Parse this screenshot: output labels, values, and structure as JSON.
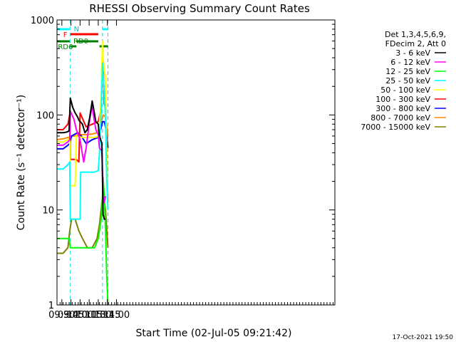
{
  "chart_data": {
    "type": "line",
    "title": "RHESSI Observing Summary Count Rates",
    "xlabel": "Start Time (02-Jul-05 09:21:42)",
    "ylabel": "Count Rate (s⁻¹ detector⁻¹)",
    "yscale": "log",
    "ylim": [
      1,
      1000
    ],
    "xlim_min": [
      562,
      1020
    ],
    "x_ticks": [
      {
        "label": "09:30",
        "min": 570
      },
      {
        "label": "09:45",
        "min": 585
      },
      {
        "label": "10:00",
        "min": 600
      },
      {
        "label": "10:15",
        "min": 615
      },
      {
        "label": "10:30",
        "min": 630
      },
      {
        "label": "10:45",
        "min": 645
      },
      {
        "label": "11:00",
        "min": 660
      }
    ],
    "y_ticks": [
      {
        "label": "1",
        "value": 1
      },
      {
        "label": "10",
        "value": 10
      },
      {
        "label": "100",
        "value": 100
      },
      {
        "label": "1000",
        "value": 1000
      }
    ],
    "legend_header": [
      "Det 1,3,4,5,6,9,",
      "FDecim 2, Att 0"
    ],
    "legend_placement": "right",
    "footer_date": "17-Oct-2021 19:50",
    "flags": {
      "N_label": "N",
      "F_label": "F",
      "RD0_label": "RD0",
      "RD6_label": "RD6"
    },
    "series": [
      {
        "name": "3 - 6 keV",
        "color": "#000000",
        "points": [
          [
            562,
            65
          ],
          [
            572,
            65
          ],
          [
            578,
            66
          ],
          [
            582,
            68
          ],
          [
            584,
            150
          ],
          [
            588,
            120
          ],
          [
            592,
            105
          ],
          [
            596,
            95
          ],
          [
            598,
            88
          ],
          [
            604,
            80
          ],
          [
            608,
            65
          ],
          [
            612,
            70
          ],
          [
            616,
            95
          ],
          [
            620,
            140
          ],
          [
            622,
            120
          ],
          [
            626,
            85
          ],
          [
            630,
            80
          ],
          [
            632,
            60
          ],
          [
            636,
            50
          ],
          [
            637,
            20
          ],
          [
            638,
            9
          ],
          [
            640,
            8
          ],
          [
            642,
            8
          ]
        ]
      },
      {
        "name": "6 - 12 keV",
        "color": "#ff00ff",
        "points": [
          [
            562,
            48
          ],
          [
            572,
            48
          ],
          [
            580,
            52
          ],
          [
            583,
            55
          ],
          [
            584,
            110
          ],
          [
            590,
            90
          ],
          [
            594,
            70
          ],
          [
            600,
            55
          ],
          [
            604,
            38
          ],
          [
            606,
            32
          ],
          [
            610,
            45
          ],
          [
            616,
            90
          ],
          [
            620,
            125
          ],
          [
            622,
            100
          ],
          [
            626,
            70
          ],
          [
            630,
            62
          ],
          [
            632,
            45
          ],
          [
            636,
            42
          ],
          [
            638,
            15
          ],
          [
            640,
            12
          ],
          [
            642,
            14
          ]
        ]
      },
      {
        "name": "12 - 25 keV",
        "color": "#00ff00",
        "points": [
          [
            562,
            5
          ],
          [
            572,
            5
          ],
          [
            582,
            5
          ],
          [
            584,
            4
          ],
          [
            594,
            4
          ],
          [
            604,
            4
          ],
          [
            614,
            4
          ],
          [
            624,
            4
          ],
          [
            630,
            5
          ],
          [
            632,
            6
          ],
          [
            636,
            9
          ],
          [
            638,
            22
          ],
          [
            640,
            14
          ],
          [
            642,
            6
          ],
          [
            644,
            2
          ],
          [
            646,
            1
          ]
        ]
      },
      {
        "name": "25 - 50 keV",
        "color": "#00ffff",
        "points": [
          [
            562,
            27
          ],
          [
            572,
            27
          ],
          [
            580,
            30
          ],
          [
            583,
            32
          ],
          [
            584,
            8
          ],
          [
            600,
            8
          ],
          [
            601,
            25
          ],
          [
            612,
            25
          ],
          [
            624,
            25
          ],
          [
            630,
            26
          ],
          [
            632,
            40
          ],
          [
            635,
            120
          ],
          [
            637,
            350
          ],
          [
            638,
            280
          ],
          [
            640,
            170
          ],
          [
            642,
            90
          ],
          [
            644,
            20
          ],
          [
            646,
            10
          ]
        ]
      },
      {
        "name": "50 - 100 keV",
        "color": "#ffff00",
        "points": [
          [
            562,
            52
          ],
          [
            572,
            52
          ],
          [
            580,
            55
          ],
          [
            583,
            57
          ],
          [
            584,
            18
          ],
          [
            592,
            18
          ],
          [
            594,
            60
          ],
          [
            604,
            58
          ],
          [
            614,
            58
          ],
          [
            624,
            58
          ],
          [
            630,
            59
          ],
          [
            634,
            120
          ],
          [
            637,
            600
          ],
          [
            638,
            400
          ],
          [
            640,
            300
          ],
          [
            642,
            250
          ],
          [
            644,
            40
          ],
          [
            646,
            10
          ]
        ]
      },
      {
        "name": "100 - 300 keV",
        "color": "#ff0000",
        "points": [
          [
            562,
            70
          ],
          [
            572,
            70
          ],
          [
            580,
            80
          ],
          [
            583,
            100
          ],
          [
            584,
            34
          ],
          [
            594,
            34
          ],
          [
            598,
            32
          ],
          [
            600,
            105
          ],
          [
            610,
            75
          ],
          [
            620,
            80
          ],
          [
            630,
            85
          ],
          [
            634,
            110
          ],
          [
            637,
            400
          ],
          [
            638,
            350
          ],
          [
            640,
            130
          ],
          [
            642,
            120
          ],
          [
            644,
            40
          ],
          [
            646,
            12
          ]
        ]
      },
      {
        "name": "300 - 800 keV",
        "color": "#0000ff",
        "points": [
          [
            562,
            44
          ],
          [
            572,
            44
          ],
          [
            580,
            48
          ],
          [
            583,
            50
          ],
          [
            586,
            60
          ],
          [
            596,
            65
          ],
          [
            602,
            60
          ],
          [
            610,
            50
          ],
          [
            620,
            55
          ],
          [
            630,
            58
          ],
          [
            634,
            70
          ],
          [
            637,
            85
          ],
          [
            640,
            85
          ],
          [
            643,
            70
          ],
          [
            646,
            45
          ]
        ]
      },
      {
        "name": "800 - 7000 keV",
        "color": "#ff8800",
        "points": [
          [
            562,
            55
          ],
          [
            572,
            56
          ],
          [
            580,
            58
          ],
          [
            590,
            60
          ],
          [
            600,
            62
          ],
          [
            610,
            62
          ],
          [
            620,
            63
          ],
          [
            628,
            65
          ],
          [
            634,
            80
          ],
          [
            638,
            100
          ],
          [
            642,
            95
          ],
          [
            646,
            60
          ]
        ]
      },
      {
        "name": "7000 - 15000 keV",
        "color": "#808000",
        "points": [
          [
            562,
            3.5
          ],
          [
            572,
            3.5
          ],
          [
            580,
            4
          ],
          [
            583,
            6
          ],
          [
            586,
            8
          ],
          [
            592,
            8
          ],
          [
            598,
            6
          ],
          [
            604,
            5
          ],
          [
            612,
            4
          ],
          [
            620,
            4
          ],
          [
            628,
            5
          ],
          [
            632,
            7
          ],
          [
            636,
            12
          ],
          [
            638,
            15
          ],
          [
            642,
            10
          ],
          [
            646,
            4
          ]
        ]
      }
    ]
  }
}
